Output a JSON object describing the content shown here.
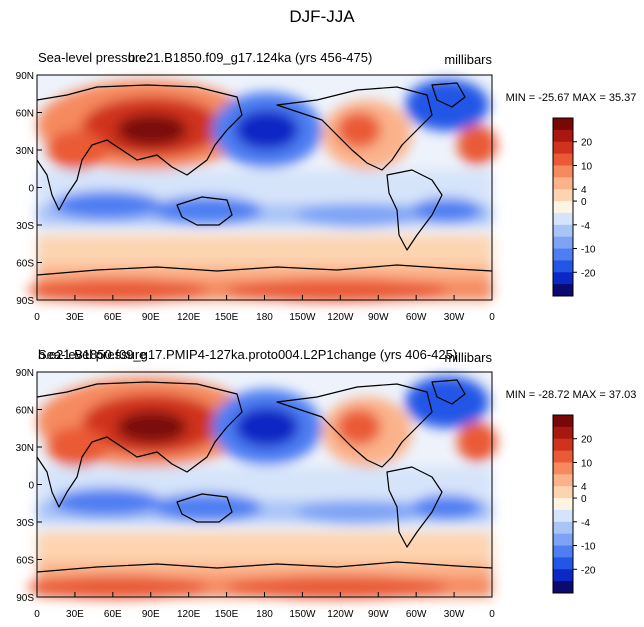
{
  "figure": {
    "title": "DJF-JJA",
    "colorbar_colors": [
      "#0b0a6e",
      "#0b27c4",
      "#2456e6",
      "#4e7ef2",
      "#7ea3f5",
      "#a9c4f7",
      "#d5e4fa",
      "#fdf4e2",
      "#fdd4b0",
      "#fbb28a",
      "#f68a5e",
      "#ea5a36",
      "#d0331d",
      "#a81810",
      "#7a0707"
    ],
    "colorbar_labels": [
      "20",
      "10",
      "4",
      "0",
      "-4",
      "-10",
      "-20"
    ],
    "lat_ticks": [
      "90N",
      "60N",
      "30N",
      "0",
      "30S",
      "60S",
      "90S"
    ],
    "lon_ticks": [
      "0",
      "30E",
      "60E",
      "90E",
      "120E",
      "150E",
      "180",
      "150W",
      "120W",
      "90W",
      "60W",
      "30W",
      "0"
    ]
  },
  "panels": [
    {
      "left_title": "Sea-level pressure",
      "center_title": "b.e21.B1850.f09_g17.124ka (yrs 456-475)",
      "units": "millibars",
      "stats": "MIN = -25.67 MAX =  35.37"
    },
    {
      "left_title": "Sea-level pressure",
      "center_title": "b.e21.B1850.f09_g17.PMIP4-127ka.proto004.L2P1change (yrs 406-425)",
      "units": "millibars",
      "stats": "MIN = -28.72 MAX =  37.03"
    }
  ]
}
